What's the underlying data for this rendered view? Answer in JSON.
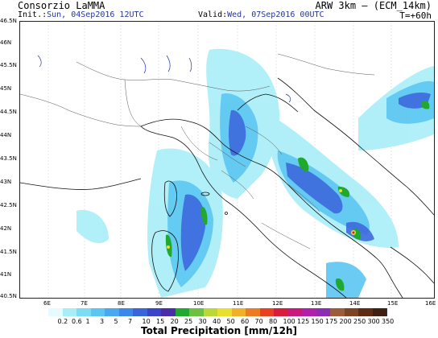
{
  "header": {
    "title": "Consorzio LaMMA",
    "init_label": "Init.:",
    "init_value": "Sun, 04Sep2016 12UTC",
    "model": "ARW 3km – (ECM_14km)",
    "valid_label": "Valid:",
    "valid_value": "Wed, 07Sep2016 00UTC",
    "timestep": "T=+60h"
  },
  "axes": {
    "lat_labels": [
      "46.5N",
      "46N",
      "45.5N",
      "45N",
      "44.5N",
      "44N",
      "43.5N",
      "43N",
      "42.5N",
      "42N",
      "41.5N",
      "41N",
      "40.5N"
    ],
    "lon_labels": [
      "6E",
      "7E",
      "8E",
      "9E",
      "10E",
      "11E",
      "12E",
      "13E",
      "14E",
      "15E",
      "16E"
    ]
  },
  "colorbar": {
    "labels": [
      "0.2",
      "0.6",
      "1",
      "3",
      "5",
      "7",
      "10",
      "15",
      "20",
      "25",
      "30",
      "40",
      "50",
      "60",
      "70",
      "80",
      "100",
      "125",
      "150",
      "175",
      "200",
      "250",
      "300",
      "350"
    ],
    "colors": [
      "#e6fbff",
      "#a8eef8",
      "#7ddcf5",
      "#5cc6f2",
      "#4aa8ee",
      "#3c88e8",
      "#3a64da",
      "#3a44c8",
      "#4a2ea8",
      "#20a830",
      "#6ec040",
      "#bcd838",
      "#e8e030",
      "#f0b028",
      "#ec7c24",
      "#e84020",
      "#d81c3c",
      "#c8187c",
      "#b020a8",
      "#8c2cb0",
      "#9c5c3c",
      "#7c4424",
      "#5c2c14",
      "#402010"
    ],
    "units": "Total Precipitation [mm/12h]"
  }
}
